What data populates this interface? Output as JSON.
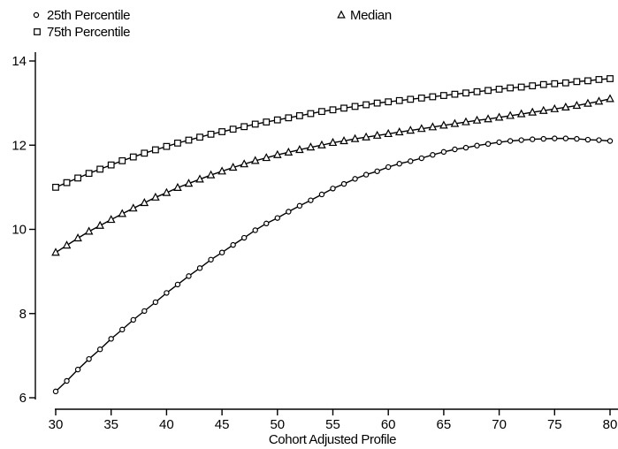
{
  "chart_data": {
    "type": "line",
    "xlabel": "Cohort Adjusted Profile",
    "ylabel": "",
    "xlim": [
      30,
      80
    ],
    "ylim": [
      6,
      14
    ],
    "xticks": [
      "30",
      "35",
      "40",
      "45",
      "50",
      "55",
      "60",
      "65",
      "70",
      "75",
      "80"
    ],
    "yticks": [
      "6",
      "8",
      "10",
      "12",
      "14"
    ],
    "grid": false,
    "legend_position": "top",
    "x": [
      30,
      31,
      32,
      33,
      34,
      35,
      36,
      37,
      38,
      39,
      40,
      41,
      42,
      43,
      44,
      45,
      46,
      47,
      48,
      49,
      50,
      51,
      52,
      53,
      54,
      55,
      56,
      57,
      58,
      59,
      60,
      61,
      62,
      63,
      64,
      65,
      66,
      67,
      68,
      69,
      70,
      71,
      72,
      73,
      74,
      75,
      76,
      77,
      78,
      79,
      80
    ],
    "series": [
      {
        "name": "25th Percentile",
        "marker": "circle",
        "values": [
          6.15,
          6.4,
          6.67,
          6.92,
          7.15,
          7.4,
          7.62,
          7.85,
          8.06,
          8.27,
          8.49,
          8.69,
          8.89,
          9.08,
          9.28,
          9.45,
          9.63,
          9.8,
          9.98,
          10.14,
          10.27,
          10.42,
          10.56,
          10.69,
          10.83,
          10.97,
          11.08,
          11.2,
          11.3,
          11.38,
          11.48,
          11.56,
          11.62,
          11.69,
          11.77,
          11.84,
          11.9,
          11.94,
          11.99,
          12.03,
          12.07,
          12.1,
          12.12,
          12.14,
          12.15,
          12.16,
          12.16,
          12.15,
          12.13,
          12.12,
          12.1
        ]
      },
      {
        "name": "Median",
        "marker": "triangle",
        "values": [
          9.45,
          9.62,
          9.79,
          9.95,
          10.09,
          10.23,
          10.37,
          10.5,
          10.63,
          10.76,
          10.87,
          10.99,
          11.09,
          11.19,
          11.29,
          11.38,
          11.47,
          11.55,
          11.63,
          11.7,
          11.77,
          11.83,
          11.89,
          11.95,
          12.0,
          12.06,
          12.1,
          12.15,
          12.19,
          12.23,
          12.27,
          12.31,
          12.35,
          12.39,
          12.43,
          12.47,
          12.51,
          12.55,
          12.59,
          12.62,
          12.66,
          12.7,
          12.74,
          12.78,
          12.82,
          12.86,
          12.9,
          12.94,
          12.99,
          13.04,
          13.1
        ]
      },
      {
        "name": "75th Percentile",
        "marker": "square",
        "values": [
          11.0,
          11.11,
          11.22,
          11.33,
          11.43,
          11.53,
          11.63,
          11.72,
          11.81,
          11.89,
          11.97,
          12.05,
          12.12,
          12.19,
          12.26,
          12.32,
          12.38,
          12.44,
          12.5,
          12.55,
          12.6,
          12.65,
          12.7,
          12.75,
          12.8,
          12.84,
          12.88,
          12.92,
          12.96,
          13.0,
          13.03,
          13.06,
          13.09,
          13.12,
          13.15,
          13.18,
          13.21,
          13.24,
          13.27,
          13.3,
          13.33,
          13.36,
          13.38,
          13.41,
          13.44,
          13.46,
          13.48,
          13.51,
          13.53,
          13.56,
          13.58
        ]
      }
    ]
  }
}
